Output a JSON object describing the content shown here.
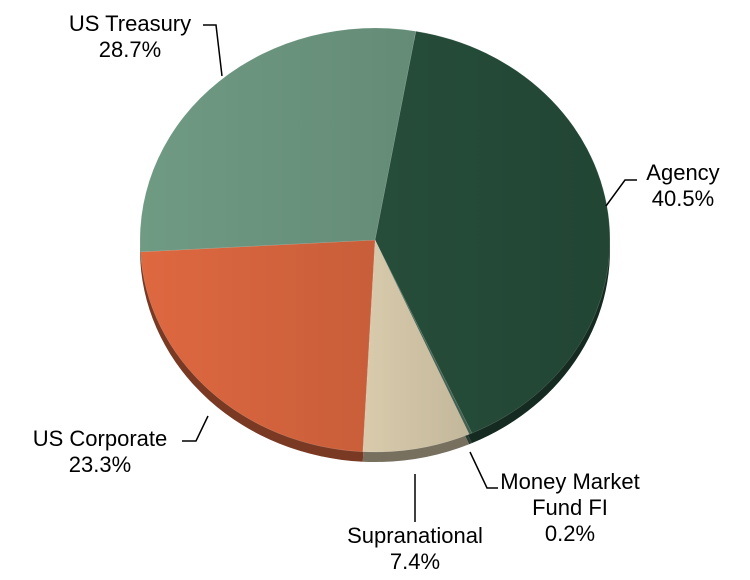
{
  "chart_data": {
    "type": "pie",
    "categories": [
      "Agency",
      "Money Market Fund FI",
      "Supranational",
      "US Corporate",
      "US Treasury"
    ],
    "values": [
      40.5,
      0.2,
      7.4,
      23.3,
      28.7
    ],
    "value_labels": [
      "40.5%",
      "0.2%",
      "7.4%",
      "23.3%",
      "28.7%"
    ],
    "colors": [
      "#264d3a",
      "#4a6a58",
      "#d9cbac",
      "#de6840",
      "#6f9a83"
    ]
  }
}
